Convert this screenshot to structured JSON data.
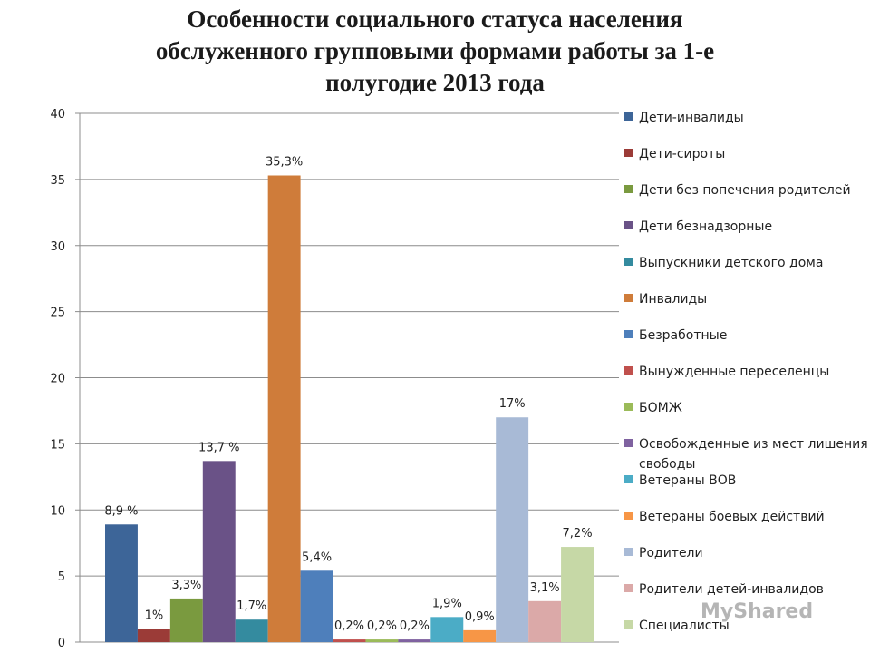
{
  "title_lines": [
    "Особенности социального статуса населения",
    "обслуженного групповыми формами работы за 1-е",
    "полугодие 2013 года"
  ],
  "watermark": "MyShared",
  "chart_data": {
    "type": "bar",
    "ylim": [
      0,
      40
    ],
    "yticks": [
      0,
      5,
      10,
      15,
      20,
      25,
      30,
      35,
      40
    ],
    "grid": true,
    "legend_position": "right",
    "series": [
      {
        "name": "Дети-инвалиды",
        "value": 8.9,
        "label": "8,9 %",
        "color": "#3d6598"
      },
      {
        "name": "Дети-сироты",
        "value": 1.0,
        "label": "1%",
        "color": "#9b3b37"
      },
      {
        "name": "Дети без попечения родителей",
        "value": 3.3,
        "label": "3,3%",
        "color": "#7a9a3f"
      },
      {
        "name": "Дети безнадзорные",
        "value": 13.7,
        "label": "13,7 %",
        "color": "#6a5287"
      },
      {
        "name": "Выпускники детского дома",
        "value": 1.7,
        "label": "1,7%",
        "color": "#348b9f"
      },
      {
        "name": "Инвалиды",
        "value": 35.3,
        "label": "35,3%",
        "color": "#cf7c3a"
      },
      {
        "name": "Безработные",
        "value": 5.4,
        "label": "5,4%",
        "color": "#4e7fbb"
      },
      {
        "name": "Вынужденные переселенцы",
        "value": 0.2,
        "label": "0,2%",
        "color": "#c0504d"
      },
      {
        "name": "БОМЖ",
        "value": 0.2,
        "label": "0,2%",
        "color": "#9bbb59"
      },
      {
        "name": "Освобожденные из мест лишения свободы",
        "value": 0.2,
        "label": "0,2%",
        "color": "#7f62a0"
      },
      {
        "name": "Ветераны ВОВ",
        "value": 1.9,
        "label": "1,9%",
        "color": "#4bacc6"
      },
      {
        "name": "Ветераны боевых действий",
        "value": 0.9,
        "label": "0,9%",
        "color": "#f79646"
      },
      {
        "name": "Родители",
        "value": 17.0,
        "label": "17%",
        "color": "#a8bad6"
      },
      {
        "name": "Родители детей-инвалидов",
        "value": 3.1,
        "label": "3,1%",
        "color": "#dba9a8"
      },
      {
        "name": "Специалисты",
        "value": 7.2,
        "label": "7,2%",
        "color": "#c6d8a6"
      }
    ]
  }
}
